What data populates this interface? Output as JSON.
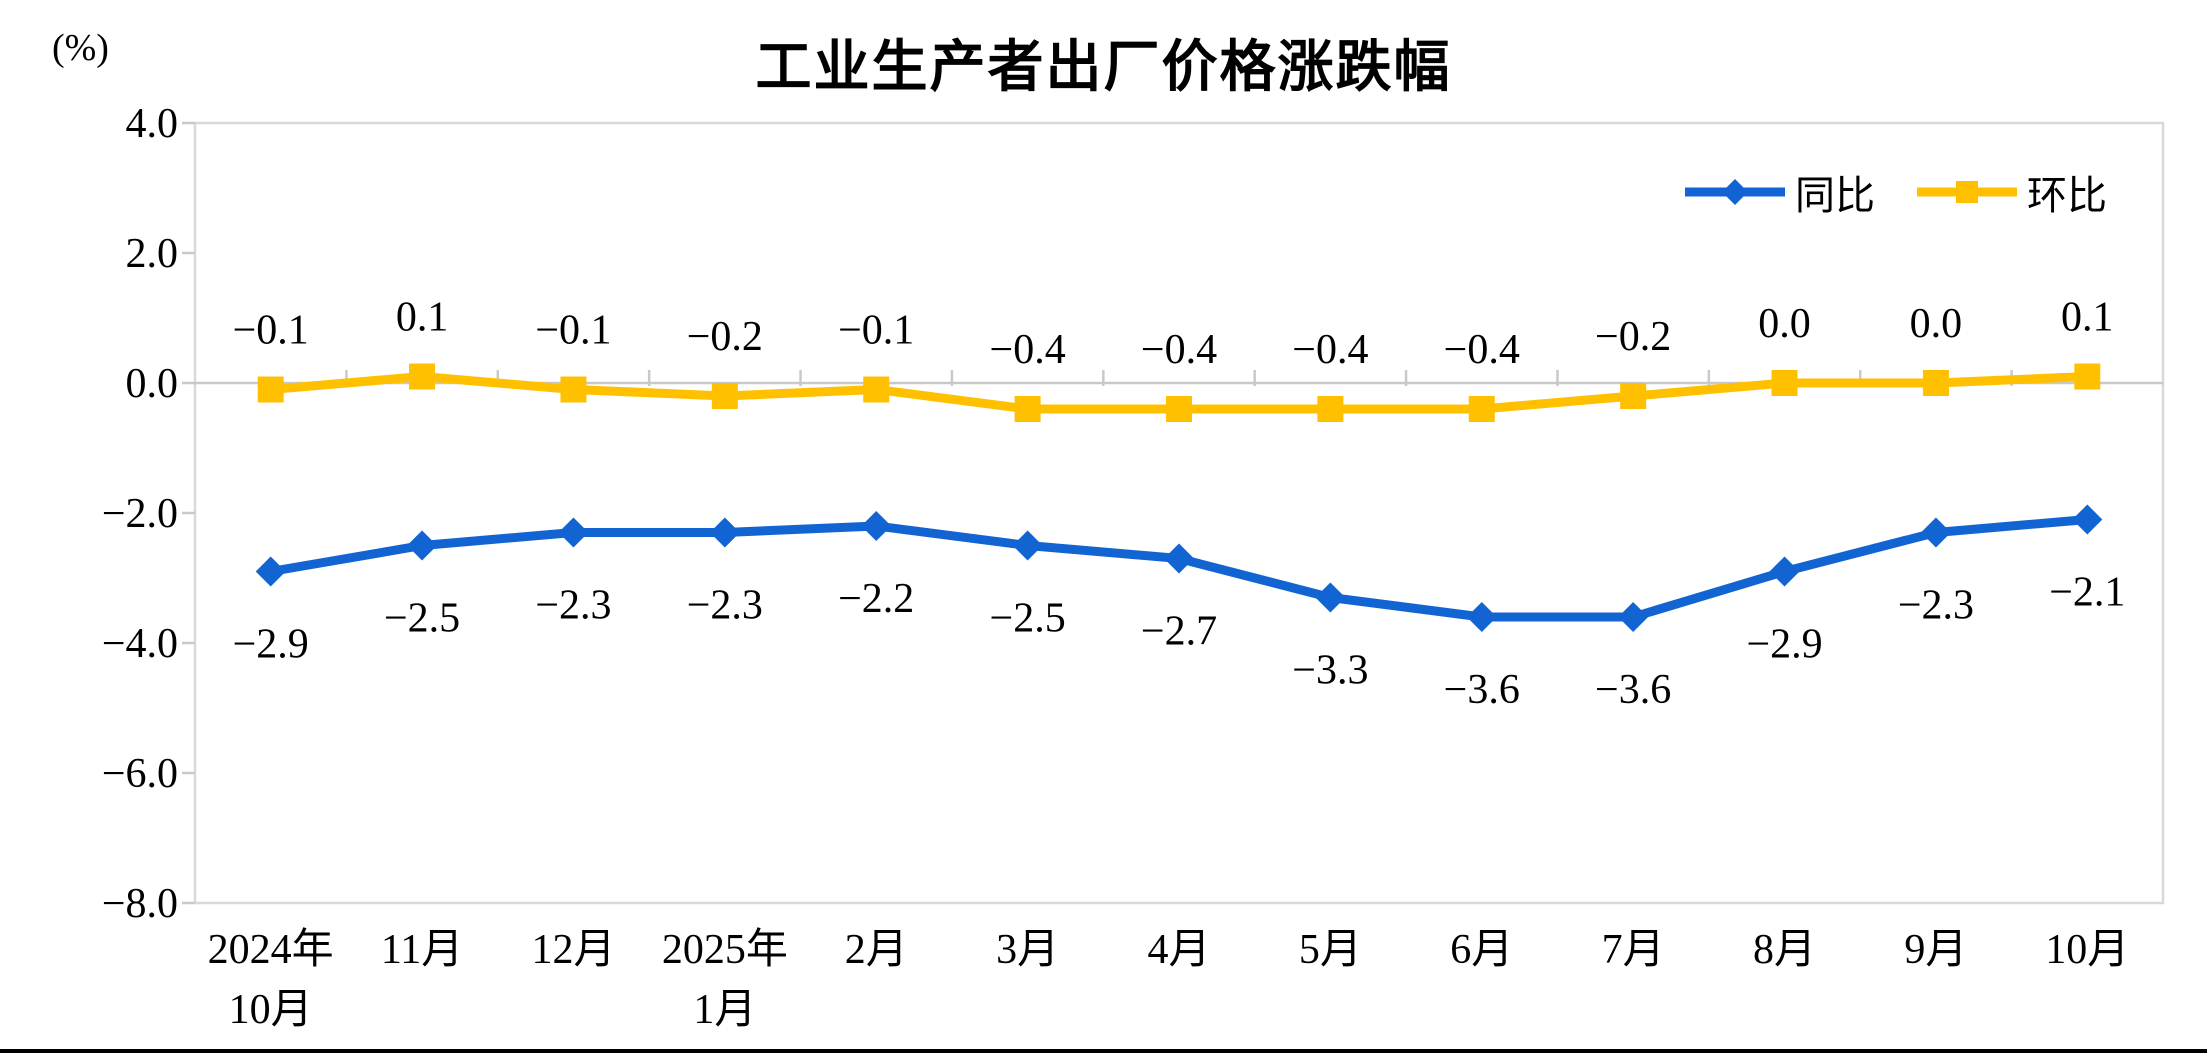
{
  "title": "工业生产者出厂价格涨跌幅",
  "unit_label": "(%)",
  "colors": {
    "tongbi_blue": "#1264D2",
    "huanbi_yellow": "#FFC000",
    "zero_line_gray": "#C9C9C9",
    "plot_border_gray": "#D9D9D9",
    "text_black": "#000000"
  },
  "legend": [
    {
      "label": "同比",
      "color": "#1264D2",
      "marker": "diamond"
    },
    {
      "label": "环比",
      "color": "#FFC000",
      "marker": "square"
    }
  ],
  "chart_data": {
    "type": "line",
    "title": "工业生产者出厂价格涨跌幅",
    "ylabel": "(%)",
    "xlabel": "",
    "grid": "zero-line-only",
    "legend_position": "top-right",
    "categories": [
      [
        "2024年",
        "10月"
      ],
      [
        "11月"
      ],
      [
        "12月"
      ],
      [
        "2025年",
        "1月"
      ],
      [
        "2月"
      ],
      [
        "3月"
      ],
      [
        "4月"
      ],
      [
        "5月"
      ],
      [
        "6月"
      ],
      [
        "7月"
      ],
      [
        "8月"
      ],
      [
        "9月"
      ],
      [
        "10月"
      ]
    ],
    "y_axis": {
      "min": -8.0,
      "max": 4.0,
      "ticks": [
        4.0,
        2.0,
        0.0,
        -2.0,
        -4.0,
        -6.0,
        -8.0
      ],
      "tick_labels": [
        "4.0",
        "2.0",
        "0.0",
        "−2.0",
        "−4.0",
        "−6.0",
        "−8.0"
      ]
    },
    "series": [
      {
        "name": "同比",
        "color": "#1264D2",
        "marker": "diamond",
        "label_position": "below",
        "values": [
          -2.9,
          -2.5,
          -2.3,
          -2.3,
          -2.2,
          -2.5,
          -2.7,
          -3.3,
          -3.6,
          -3.6,
          -2.9,
          -2.3,
          -2.1
        ],
        "labels": [
          "−2.9",
          "−2.5",
          "−2.3",
          "−2.3",
          "−2.2",
          "−2.5",
          "−2.7",
          "−3.3",
          "−3.6",
          "−3.6",
          "−2.9",
          "−2.3",
          "−2.1"
        ]
      },
      {
        "name": "环比",
        "color": "#FFC000",
        "marker": "square",
        "label_position": "above",
        "values": [
          -0.1,
          0.1,
          -0.1,
          -0.2,
          -0.1,
          -0.4,
          -0.4,
          -0.4,
          -0.4,
          -0.2,
          0.0,
          0.0,
          0.1
        ],
        "labels": [
          "−0.1",
          "0.1",
          "−0.1",
          "−0.2",
          "−0.1",
          "−0.4",
          "−0.4",
          "−0.4",
          "−0.4",
          "−0.2",
          "0.0",
          "0.0",
          "0.1"
        ]
      }
    ]
  }
}
